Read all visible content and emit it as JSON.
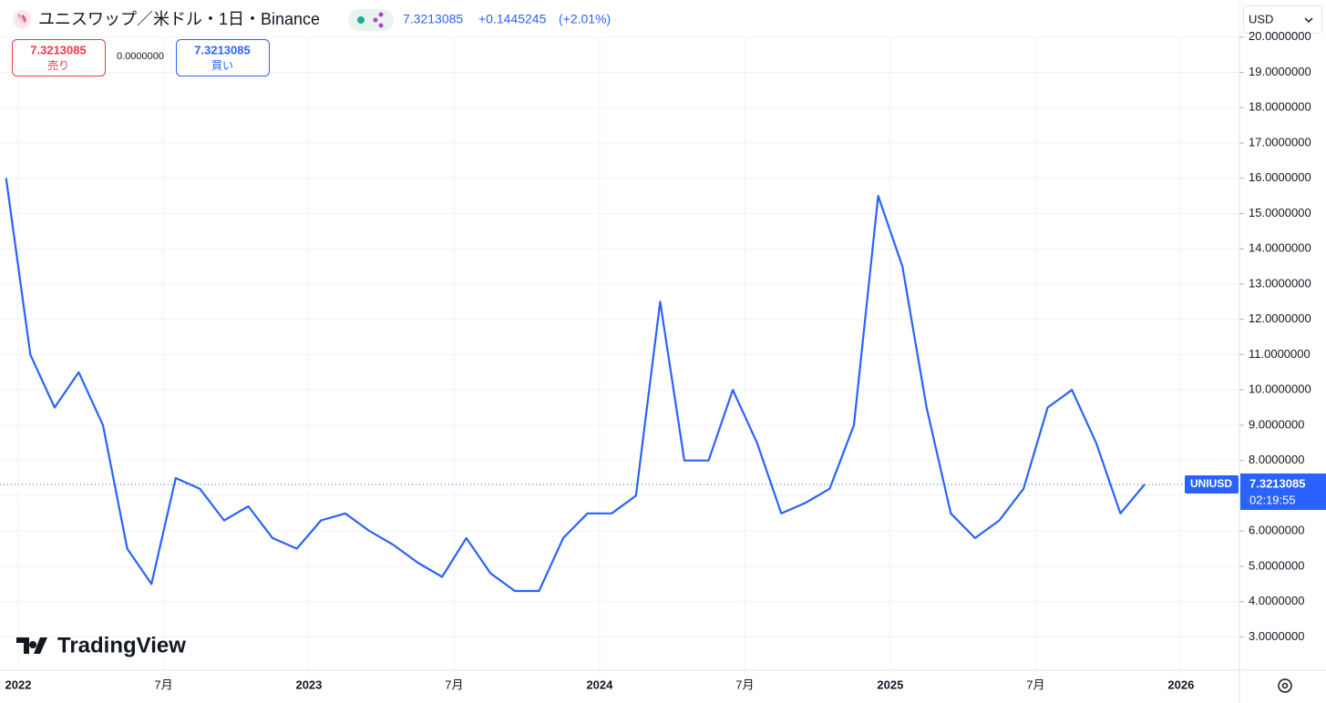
{
  "header": {
    "title": "ユニスワップ／米ドル・1日・Binance",
    "price": "7.3213085",
    "change": "+0.1445245",
    "change_pct": "(+2.01%)",
    "sell_price": "7.3213085",
    "sell_label": "売り",
    "spread": "0.0000000",
    "buy_price": "7.3213085",
    "buy_label": "買い",
    "currency": "USD",
    "symbol_tag": "UNIUSD",
    "countdown": "02:19:55",
    "logo": "TradingView"
  },
  "chart_data": {
    "type": "line",
    "x": [
      "2021-12",
      "2022-01",
      "2022-02",
      "2022-03",
      "2022-04",
      "2022-05",
      "2022-06",
      "2022-07",
      "2022-08",
      "2022-09",
      "2022-10",
      "2022-11",
      "2022-12",
      "2023-01",
      "2023-02",
      "2023-03",
      "2023-04",
      "2023-05",
      "2023-06",
      "2023-07",
      "2023-08",
      "2023-09",
      "2023-10",
      "2023-11",
      "2023-12",
      "2024-01",
      "2024-02",
      "2024-03",
      "2024-04",
      "2024-05",
      "2024-06",
      "2024-07",
      "2024-08",
      "2024-09",
      "2024-10",
      "2024-11",
      "2024-12",
      "2025-01",
      "2025-02",
      "2025-03",
      "2025-04",
      "2025-05",
      "2025-06",
      "2025-07",
      "2025-08",
      "2025-09",
      "2025-10",
      "2025-11"
    ],
    "series": [
      {
        "name": "UNIUSD",
        "color": "#2962ff",
        "values": [
          16,
          11,
          9.5,
          10.5,
          9,
          5.5,
          4.5,
          7.5,
          7.2,
          6.3,
          6.7,
          5.8,
          5.5,
          6.3,
          6.5,
          6.0,
          5.6,
          5.1,
          4.7,
          5.8,
          4.8,
          4.3,
          4.3,
          5.8,
          6.5,
          6.5,
          7.0,
          12.5,
          8.0,
          8.0,
          10.0,
          8.5,
          6.5,
          6.8,
          7.2,
          9.0,
          15.5,
          13.5,
          9.5,
          6.5,
          5.8,
          6.3,
          7.2,
          9.5,
          10.0,
          8.5,
          6.5,
          7.3213085
        ]
      }
    ],
    "last_price": 7.3213085,
    "xlim": [
      "2021-12",
      "2026-03"
    ],
    "xticks": [
      {
        "value": "2022-01",
        "label": "2022"
      },
      {
        "value": "2022-07",
        "label": "7月"
      },
      {
        "value": "2023-01",
        "label": "2023"
      },
      {
        "value": "2023-07",
        "label": "7月"
      },
      {
        "value": "2024-01",
        "label": "2024"
      },
      {
        "value": "2024-07",
        "label": "7月"
      },
      {
        "value": "2025-01",
        "label": "2025"
      },
      {
        "value": "2025-07",
        "label": "7月"
      },
      {
        "value": "2026-01",
        "label": "2026"
      }
    ],
    "ylim": [
      2.07,
      20.03
    ],
    "yticks": [
      {
        "value": 3,
        "label": "3.0000000"
      },
      {
        "value": 4,
        "label": "4.0000000"
      },
      {
        "value": 5,
        "label": "5.0000000"
      },
      {
        "value": 6,
        "label": "6.0000000"
      },
      {
        "value": 7,
        "label": "7.0000000"
      },
      {
        "value": 8,
        "label": "8.0000000"
      },
      {
        "value": 9,
        "label": "9.0000000"
      },
      {
        "value": 10,
        "label": "10.0000000"
      },
      {
        "value": 11,
        "label": "11.0000000"
      },
      {
        "value": 12,
        "label": "12.0000000"
      },
      {
        "value": 13,
        "label": "13.0000000"
      },
      {
        "value": 14,
        "label": "14.0000000"
      },
      {
        "value": 15,
        "label": "15.0000000"
      },
      {
        "value": 16,
        "label": "16.0000000"
      },
      {
        "value": 17,
        "label": "17.0000000"
      },
      {
        "value": 18,
        "label": "18.0000000"
      },
      {
        "value": 19,
        "label": "19.0000000"
      },
      {
        "value": 20,
        "label": "20.0000000"
      }
    ],
    "grid": true
  }
}
